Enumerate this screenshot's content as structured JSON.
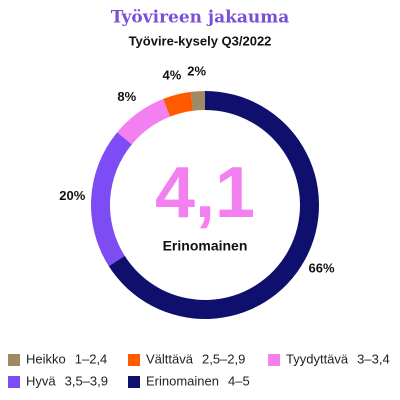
{
  "chart_data": {
    "type": "donut",
    "title": "Työvireen jakauma",
    "subtitle": "Työvire-kysely Q3/2022",
    "categories": [
      "Heikko",
      "Välttävä",
      "Tyydyttävä",
      "Hyvä",
      "Erinomainen"
    ],
    "legend_ranges": [
      "1–2,4",
      "2,5–2,9",
      "3–3,4",
      "3,5–3,9",
      "4–5"
    ],
    "values": [
      2,
      4,
      8,
      20,
      66
    ],
    "value_labels": [
      "2%",
      "4%",
      "8%",
      "20%",
      "66%"
    ],
    "colors": [
      "#a08a64",
      "#ff5a00",
      "#f47ff0",
      "#7d4cf5",
      "#0f0f6e"
    ],
    "center_label": "4,1",
    "center_caption": "Erinomainen"
  }
}
